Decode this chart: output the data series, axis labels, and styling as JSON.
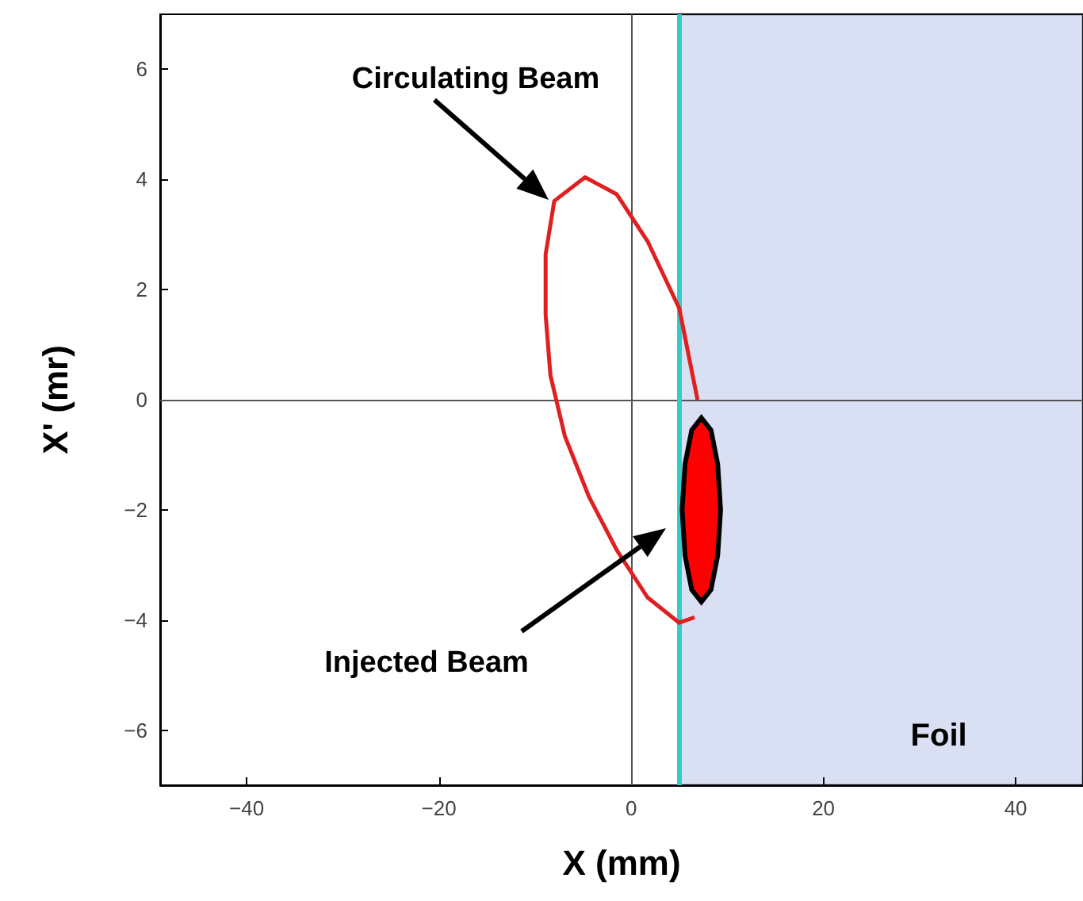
{
  "chart_data": {
    "type": "line",
    "xlabel": "X (mm)",
    "ylabel": "X' (mr)",
    "xlim": [
      -49,
      47
    ],
    "xticks": [
      -40,
      -20,
      0,
      20,
      40
    ],
    "ylim": [
      -7,
      7
    ],
    "yticks": [
      -6,
      -4,
      -2,
      0,
      2,
      4,
      6
    ],
    "grid": false,
    "marker": "none",
    "line_style": "solid",
    "series": [
      {
        "color": "#e02020",
        "x": [
          6.9,
          5.0,
          1.7,
          -1.5,
          -4.8,
          -8.0,
          -8.9,
          -8.9,
          -8.4,
          -6.9,
          -4.4,
          -1.5,
          1.7,
          5.0,
          6.6
        ],
        "values": [
          0.0,
          1.66,
          2.88,
          3.73,
          4.04,
          3.61,
          2.64,
          1.54,
          0.44,
          -0.66,
          -1.76,
          -2.73,
          -3.59,
          -4.05,
          -3.95
        ]
      },
      {
        "type": "area",
        "color": "#ff0000",
        "x": [
          9.3,
          9.0,
          8.3,
          7.3,
          6.3,
          5.6,
          5.3,
          5.6,
          6.3,
          7.3,
          8.3,
          9.0,
          9.3
        ],
        "values": [
          -2.0,
          -1.17,
          -0.55,
          -0.33,
          -0.55,
          -1.17,
          -2.0,
          -2.83,
          -3.45,
          -3.67,
          -3.45,
          -2.83,
          -2.0
        ]
      }
    ],
    "ref_lines": [
      {
        "axis": "x",
        "value": 0,
        "color": "#555555"
      },
      {
        "axis": "y",
        "value": 0,
        "color": "#555555"
      },
      {
        "axis": "x",
        "value": 5,
        "color": "#33cccc"
      }
    ],
    "bands": [
      {
        "axis": "x",
        "from": 5,
        "to": 47,
        "label": "Foil",
        "color": "#3355bb"
      }
    ],
    "annotations": [
      "Circulating Beam",
      "Injected Beam"
    ]
  }
}
